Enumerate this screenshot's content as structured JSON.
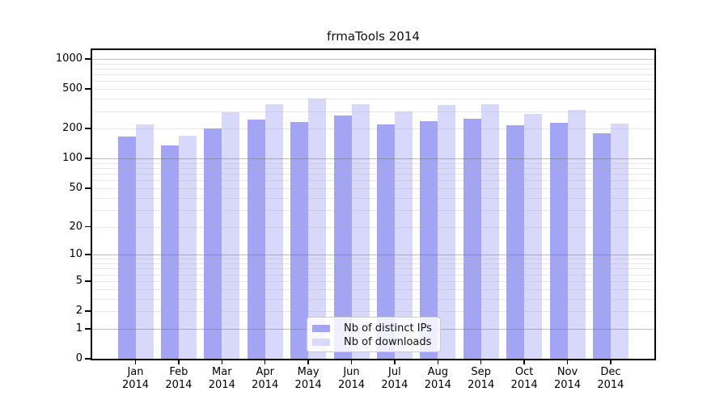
{
  "chart_data": {
    "type": "bar",
    "title": "frmaTools 2014",
    "scale": "log1p",
    "grid": true,
    "legend_position": "lower center",
    "year": "2014",
    "categories": [
      "Jan",
      "Feb",
      "Mar",
      "Apr",
      "May",
      "Jun",
      "Jul",
      "Aug",
      "Sep",
      "Oct",
      "Nov",
      "Dec"
    ],
    "series": [
      {
        "name": "Nb of distinct IPs",
        "color": "#a4a4f4",
        "values": [
          165,
          135,
          200,
          245,
          235,
          270,
          222,
          237,
          252,
          218,
          230,
          180
        ]
      },
      {
        "name": "Nb of downloads",
        "color": "#d8d8fa",
        "values": [
          220,
          170,
          290,
          355,
          398,
          350,
          297,
          345,
          350,
          282,
          310,
          224
        ]
      }
    ],
    "y_ticks": [
      0,
      1,
      2,
      5,
      10,
      20,
      50,
      100,
      200,
      500,
      1000
    ],
    "y_minor_gridlines": [
      2,
      3,
      4,
      5,
      6,
      7,
      8,
      9,
      20,
      30,
      40,
      50,
      60,
      70,
      80,
      90,
      200,
      300,
      400,
      500,
      600,
      700,
      800,
      900
    ],
    "y_major_gridlines": [
      1,
      10,
      100,
      1000
    ],
    "ylim": [
      0,
      1250
    ],
    "axis_color": "#000000"
  }
}
